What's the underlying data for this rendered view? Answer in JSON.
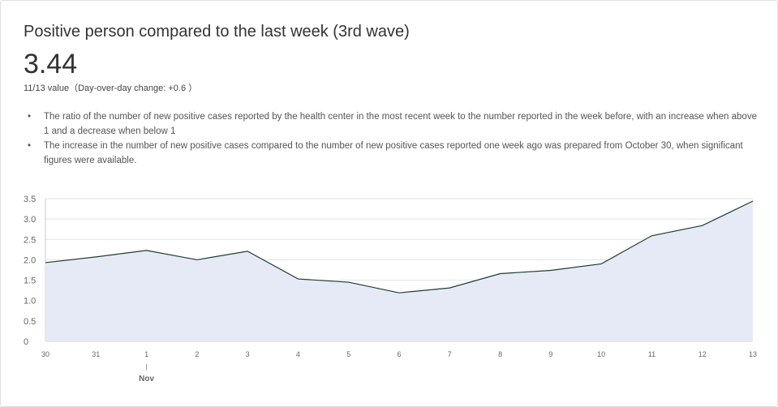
{
  "card": {
    "title": "Positive person compared to the last week (3rd wave)",
    "value": "3.44",
    "subtitle": "11/13 value（Day-over-day change: +0.6 ）",
    "notes": [
      "The ratio of the number of new positive cases reported by the health center in the most recent week to the number reported in the week before, with an increase when above 1 and a decrease when below 1",
      "The increase in the number of new positive cases compared to the number of new positive cases reported one week ago was prepared from October 30, when significant figures were available."
    ]
  },
  "chart_data": {
    "type": "area",
    "x": [
      "30",
      "31",
      "1",
      "2",
      "3",
      "4",
      "5",
      "6",
      "7",
      "8",
      "9",
      "10",
      "11",
      "12",
      "13"
    ],
    "values": [
      1.93,
      2.07,
      2.23,
      2.0,
      2.21,
      1.53,
      1.45,
      1.19,
      1.31,
      1.66,
      1.74,
      1.9,
      2.59,
      2.84,
      3.44
    ],
    "month_label": "Nov",
    "month_label_at": "1",
    "yticks": [
      "0",
      "0.5",
      "1.0",
      "1.5",
      "2.0",
      "2.5",
      "3.0",
      "3.5"
    ],
    "ylim": [
      0,
      3.5
    ],
    "grid": true,
    "line_color": "#1f3d2e",
    "fill_color": "#e6eaf6",
    "grid_color": "#e3e3e3"
  }
}
